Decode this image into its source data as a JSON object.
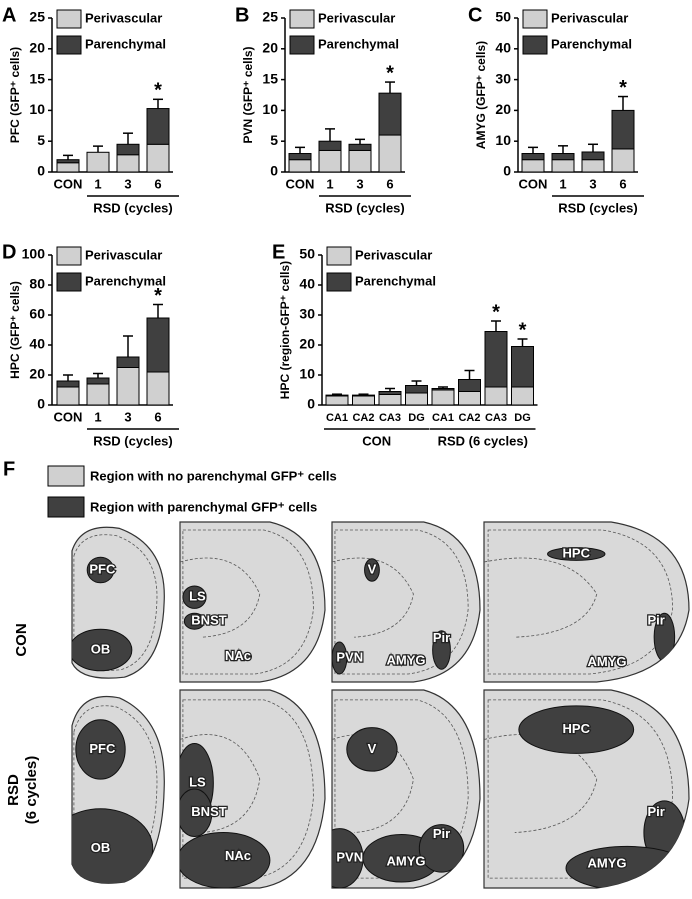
{
  "chart_data": [
    {
      "type": "bar",
      "letter": "A",
      "ylabel": "PFC (GFP⁺ cells)",
      "categories": [
        "CON",
        "1",
        "3",
        "6"
      ],
      "xlabel": "RSD (cycles)",
      "ylim": [
        0,
        25
      ],
      "yticks": [
        0,
        5,
        10,
        15,
        20,
        25
      ],
      "series": [
        {
          "name": "Perivascular",
          "color": "#d0d0d0",
          "values": [
            1.5,
            3.2,
            2.8,
            4.5
          ]
        },
        {
          "name": "Parenchymal",
          "color": "#404040",
          "values": [
            0.5,
            0,
            1.7,
            5.8
          ],
          "errors": [
            0.7,
            1.0,
            1.8,
            1.5
          ]
        }
      ],
      "significance": [
        null,
        null,
        null,
        "*"
      ]
    },
    {
      "type": "bar",
      "letter": "B",
      "ylabel": "PVN (GFP⁺ cells)",
      "categories": [
        "CON",
        "1",
        "3",
        "6"
      ],
      "xlabel": "RSD (cycles)",
      "ylim": [
        0,
        25
      ],
      "yticks": [
        0,
        5,
        10,
        15,
        20,
        25
      ],
      "series": [
        {
          "name": "Perivascular",
          "color": "#d0d0d0",
          "values": [
            2,
            3.5,
            3.5,
            6
          ]
        },
        {
          "name": "Parenchymal",
          "color": "#404040",
          "values": [
            1,
            1.5,
            1,
            6.8
          ],
          "errors": [
            1,
            2,
            0.8,
            1.8
          ]
        }
      ],
      "significance": [
        null,
        null,
        null,
        "*"
      ]
    },
    {
      "type": "bar",
      "letter": "C",
      "ylabel": "AMYG (GFP⁺ cells)",
      "categories": [
        "CON",
        "1",
        "3",
        "6"
      ],
      "xlabel": "RSD (cycles)",
      "ylim": [
        0,
        50
      ],
      "yticks": [
        0,
        10,
        20,
        30,
        40,
        50
      ],
      "series": [
        {
          "name": "Perivascular",
          "color": "#d0d0d0",
          "values": [
            4,
            4,
            4,
            7.5
          ]
        },
        {
          "name": "Parenchymal",
          "color": "#404040",
          "values": [
            2,
            2,
            2.5,
            12.5
          ],
          "errors": [
            2,
            2.5,
            2.5,
            4.5
          ]
        }
      ],
      "significance": [
        null,
        null,
        null,
        "*"
      ]
    },
    {
      "type": "bar",
      "letter": "D",
      "ylabel": "HPC (GFP⁺ cells)",
      "categories": [
        "CON",
        "1",
        "3",
        "6"
      ],
      "xlabel": "RSD (cycles)",
      "ylim": [
        0,
        100
      ],
      "yticks": [
        0,
        20,
        40,
        60,
        80,
        100
      ],
      "series": [
        {
          "name": "Perivascular",
          "color": "#d0d0d0",
          "values": [
            12,
            14,
            25,
            22
          ]
        },
        {
          "name": "Parenchymal",
          "color": "#404040",
          "values": [
            4,
            4,
            7,
            36
          ],
          "errors": [
            4,
            3,
            14,
            9
          ]
        }
      ],
      "significance": [
        null,
        null,
        null,
        "*"
      ]
    },
    {
      "type": "bar",
      "letter": "E",
      "ylabel": "HPC (region-GFP⁺ cells)",
      "categories": [
        "CA1",
        "CA2",
        "CA3",
        "DG",
        "CA1",
        "CA2",
        "CA3",
        "DG"
      ],
      "groups": [
        "CON",
        "RSD (6 cycles)"
      ],
      "ylim": [
        0,
        50
      ],
      "yticks": [
        0,
        10,
        20,
        30,
        40,
        50
      ],
      "series": [
        {
          "name": "Perivascular",
          "color": "#d0d0d0",
          "values": [
            3,
            3,
            3.5,
            4,
            5,
            4.5,
            6,
            6
          ]
        },
        {
          "name": "Parenchymal",
          "color": "#404040",
          "values": [
            0.3,
            0.3,
            1,
            2.5,
            0.5,
            4,
            18.5,
            13.5
          ],
          "errors": [
            0.3,
            0.3,
            1,
            1.5,
            0.5,
            3,
            3.5,
            2.5
          ]
        }
      ],
      "significance": [
        null,
        null,
        null,
        null,
        null,
        null,
        "*",
        "*"
      ]
    }
  ],
  "panel_f": {
    "letter": "F",
    "legend": [
      {
        "label": "Region with no parenchymal GFP⁺ cells",
        "color": "#d0d0d0"
      },
      {
        "label": "Region with parenchymal GFP⁺ cells",
        "color": "#404040"
      }
    ],
    "rows": [
      {
        "label": "CON"
      },
      {
        "label": "RSD",
        "sublabel": "(6 cycles)"
      }
    ],
    "sections": [
      {
        "labels": [
          "PFC",
          "OB"
        ]
      },
      {
        "labels": [
          "LS",
          "BNST",
          "NAc"
        ]
      },
      {
        "labels": [
          "V",
          "PVN",
          "AMYG",
          "Pir"
        ]
      },
      {
        "labels": [
          "HPC",
          "Pir",
          "AMYG"
        ]
      }
    ]
  }
}
